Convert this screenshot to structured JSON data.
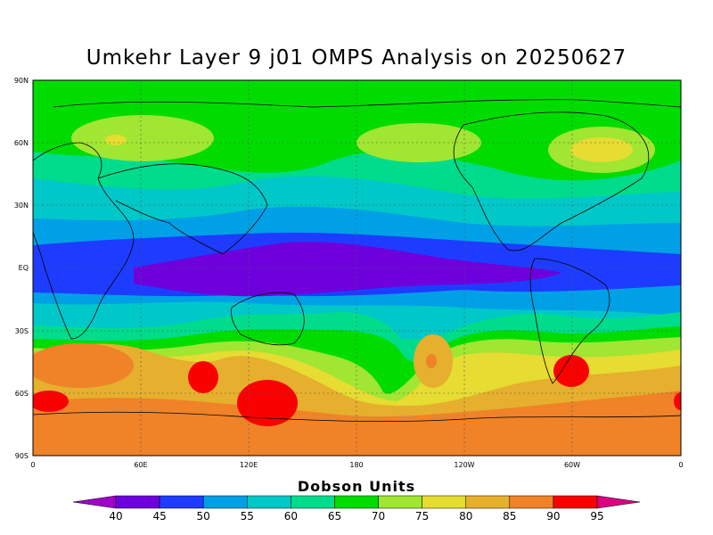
{
  "title": "Umkehr Layer 9 j01 OMPS Analysis on 20250627",
  "lat_labels": [
    "90N",
    "60N",
    "30N",
    "EQ",
    "30S",
    "60S",
    "90S"
  ],
  "lon_labels": [
    "0",
    "60E",
    "120E",
    "180",
    "120W",
    "60W",
    "0"
  ],
  "colorbar": {
    "title": "Dobson Units",
    "levels": [
      "40",
      "45",
      "50",
      "55",
      "60",
      "65",
      "70",
      "75",
      "80",
      "85",
      "90",
      "95"
    ],
    "colors": [
      "#a000c8",
      "#6e00dc",
      "#1e3cff",
      "#00a0e6",
      "#00c8c8",
      "#00dc8c",
      "#00dc00",
      "#a0e632",
      "#e6dc32",
      "#e6af2d",
      "#f08228",
      "#fa0000",
      "#dc0080"
    ]
  },
  "chart_data": {
    "type": "heatmap",
    "title": "Umkehr Layer 9 j01 OMPS Analysis on 20250627",
    "units": "Dobson Units",
    "x_range": [
      "0",
      "0"
    ],
    "y_range": [
      "90S",
      "90N"
    ],
    "contour_levels": [
      40,
      45,
      50,
      55,
      60,
      65,
      70,
      75,
      80,
      85,
      90,
      95
    ],
    "regions": [
      {
        "name": "equatorial minimum over western Pacific",
        "value": 42
      },
      {
        "name": "Southern Ocean maxima (south of Australia, SE Pacific, S Atlantic)",
        "value": 92
      },
      {
        "name": "Antarctic belt",
        "value": 88
      },
      {
        "name": "Northern high latitudes",
        "value": 68
      }
    ]
  }
}
